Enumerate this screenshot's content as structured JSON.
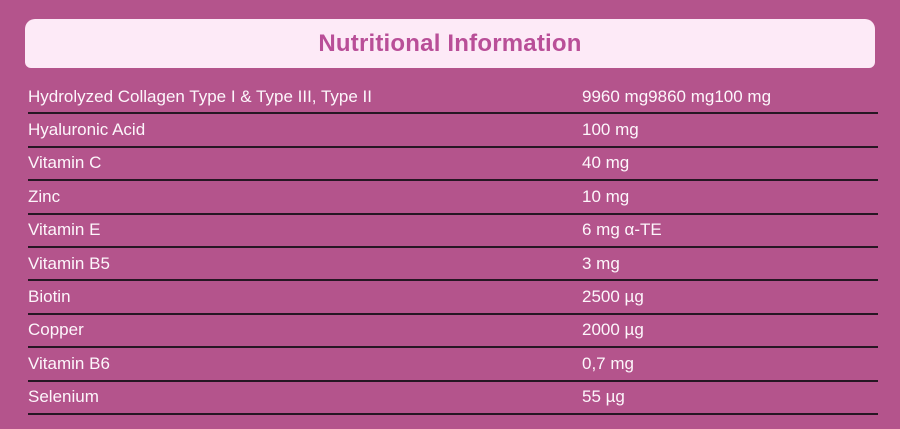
{
  "header": {
    "title": "Nutritional Information"
  },
  "table": {
    "rows": [
      {
        "label": "Hydrolyzed Collagen Type I & Type III, Type II",
        "value": "9960 mg9860 mg100 mg"
      },
      {
        "label": "Hyaluronic Acid",
        "value": "100 mg"
      },
      {
        "label": "Vitamin C",
        "value": "40 mg"
      },
      {
        "label": "Zinc",
        "value": "10 mg"
      },
      {
        "label": "Vitamin E",
        "value": "6 mg α-TE"
      },
      {
        "label": "Vitamin B5",
        "value": "3 mg"
      },
      {
        "label": "Biotin",
        "value": "2500 µg"
      },
      {
        "label": "Copper",
        "value": "2000 µg"
      },
      {
        "label": "Vitamin B6",
        "value": "0,7 mg"
      },
      {
        "label": "Selenium",
        "value": "55 µg"
      }
    ]
  },
  "colors": {
    "background": "#b4548c",
    "header_bg": "#fdeaf7",
    "header_text": "#b94f98",
    "row_text": "#fdf6fb",
    "divider": "#261623"
  }
}
